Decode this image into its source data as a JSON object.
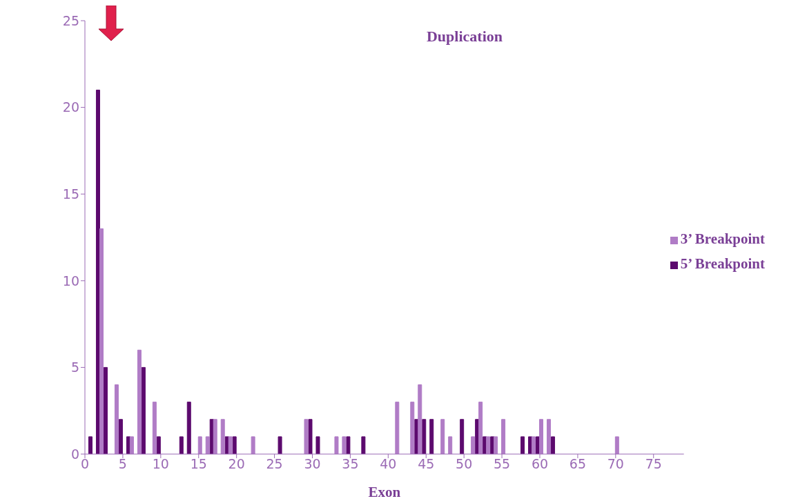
{
  "chart_data": {
    "type": "bar",
    "title": "Duplication",
    "xlabel": "Exon",
    "x": [
      1,
      2,
      3,
      4,
      5,
      6,
      7,
      8,
      9,
      10,
      13,
      14,
      15,
      16,
      17,
      18,
      19,
      20,
      22,
      26,
      29,
      30,
      31,
      33,
      34,
      35,
      37,
      41,
      43,
      44,
      45,
      46,
      47,
      48,
      50,
      51,
      52,
      53,
      54,
      55,
      58,
      59,
      60,
      61,
      62,
      70
    ],
    "series": [
      {
        "name": "5’ Breakpoint",
        "color": "#5c0a6e",
        "values": [
          1,
          21,
          5,
          null,
          2,
          1,
          null,
          5,
          null,
          1,
          1,
          3,
          null,
          null,
          2,
          null,
          1,
          1,
          null,
          1,
          null,
          2,
          1,
          null,
          null,
          1,
          1,
          null,
          null,
          2,
          2,
          2,
          null,
          null,
          2,
          null,
          2,
          1,
          1,
          null,
          1,
          1,
          1,
          null,
          1,
          null
        ]
      },
      {
        "name": "3’ Breakpoint",
        "color": "#b07cc6",
        "values": [
          null,
          13,
          null,
          4,
          null,
          1,
          6,
          null,
          3,
          null,
          null,
          null,
          1,
          1,
          2,
          2,
          1,
          null,
          1,
          null,
          2,
          null,
          null,
          1,
          1,
          null,
          null,
          3,
          3,
          4,
          null,
          null,
          2,
          1,
          null,
          1,
          3,
          1,
          1,
          2,
          null,
          1,
          2,
          2,
          null,
          1
        ]
      }
    ],
    "xlim": [
      0,
      79
    ],
    "xticks": [
      0,
      5,
      10,
      15,
      20,
      25,
      30,
      35,
      40,
      45,
      50,
      55,
      60,
      65,
      70,
      75
    ],
    "ylim": [
      0,
      25
    ],
    "yticks": [
      0,
      5,
      10,
      15,
      20,
      25
    ],
    "grid": false,
    "legend": "right"
  }
}
